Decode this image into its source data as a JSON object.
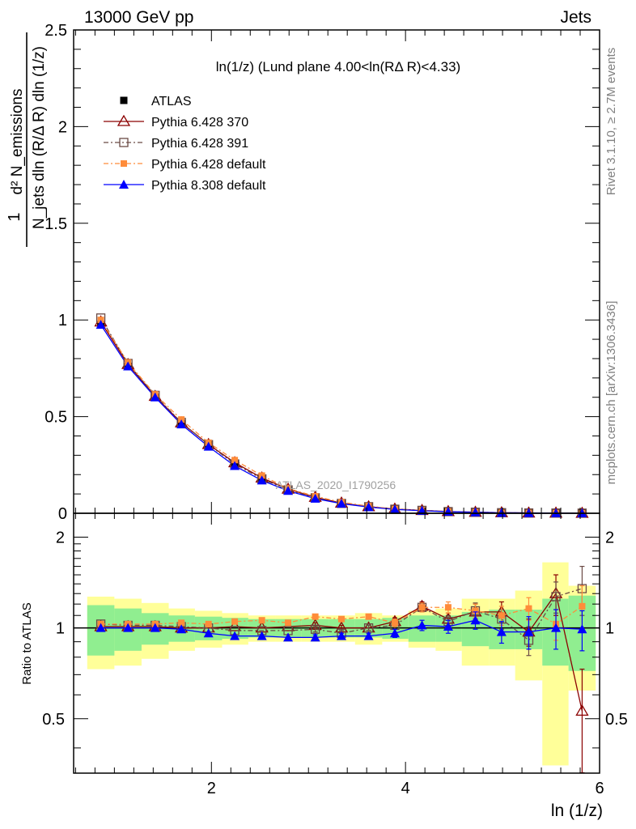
{
  "header": {
    "energy_label": "13000 GeV pp",
    "process_label": "Jets",
    "plot_title": "ln(1/z)  (Lund plane 4.00<ln(RΔ R)<4.33)",
    "analysis_watermark": "ATLAS_2020_I1790256",
    "rivet_label": "Rivet 3.1.10, ≥ 2.7M events",
    "mcplots_label": "mcplots.cern.ch [arXiv:1306.3436]"
  },
  "axes": {
    "main_ylabel_one": "1",
    "main_ylabel_num": "d² N_emissions",
    "main_ylabel_den": "N_jets dln (R/Δ R) dln (1/z)",
    "ratio_ylabel": "Ratio to ATLAS",
    "xlabel": "ln (1/z)",
    "x_ticks": [
      "2",
      "4",
      "6"
    ],
    "main_y_ticks": [
      "0",
      "0.5",
      "1",
      "1.5",
      "2",
      "2.5"
    ],
    "ratio_y_ticks_left": [
      "0.5",
      "1",
      "2"
    ],
    "ratio_y_ticks_right": [
      "0.5",
      "1",
      "2"
    ]
  },
  "legend": {
    "items": [
      {
        "key": "atlas",
        "label": "ATLAS"
      },
      {
        "key": "p370",
        "label": "Pythia 6.428 370"
      },
      {
        "key": "p391",
        "label": "Pythia 6.428 391"
      },
      {
        "key": "p6def",
        "label": "Pythia 6.428 default"
      },
      {
        "key": "p8def",
        "label": "Pythia 8.308 default"
      }
    ]
  },
  "colors": {
    "atlas": "#000000",
    "p370": "#8b0000",
    "p391": "#6b4a45",
    "p6def": "#ff8c3a",
    "p8def": "#0000ff",
    "band_inner": "#90ee90",
    "band_outer": "#ffff99"
  },
  "chart_data": {
    "type": "line",
    "x": [
      0.86,
      1.14,
      1.42,
      1.69,
      1.97,
      2.24,
      2.52,
      2.79,
      3.07,
      3.34,
      3.62,
      3.89,
      4.17,
      4.44,
      4.72,
      4.99,
      5.27,
      5.55,
      5.82
    ],
    "bin_edges": [
      0.72,
      1.0,
      1.28,
      1.56,
      1.83,
      2.11,
      2.38,
      2.66,
      2.93,
      3.21,
      3.48,
      3.76,
      4.03,
      4.31,
      4.58,
      4.86,
      5.13,
      5.41,
      5.68,
      5.96
    ],
    "xlim": [
      0.58,
      6.0
    ],
    "main_ylim": [
      0,
      2.5
    ],
    "ratio_ylim": [
      0.33,
      2.4
    ],
    "series": [
      {
        "key": "atlas",
        "name": "ATLAS",
        "values": [
          0.975,
          0.76,
          0.6,
          0.465,
          0.355,
          0.26,
          0.182,
          0.124,
          0.081,
          0.053,
          0.034,
          0.021,
          0.013,
          0.008,
          0.0048,
          0.0028,
          0.0016,
          0.0009,
          0.0005
        ]
      },
      {
        "key": "p370",
        "name": "Pythia 6.428 370",
        "values": [
          0.99,
          0.77,
          0.605,
          0.468,
          0.356,
          0.262,
          0.183,
          0.125,
          0.083,
          0.053,
          0.034,
          0.022,
          0.015,
          0.009,
          0.0055,
          0.003,
          0.0016,
          0.0012,
          0.0003
        ]
      },
      {
        "key": "p391",
        "name": "Pythia 6.428 391",
        "values": [
          1.01,
          0.775,
          0.61,
          0.47,
          0.355,
          0.255,
          0.178,
          0.121,
          0.08,
          0.051,
          0.034,
          0.021,
          0.015,
          0.0085,
          0.0055,
          0.003,
          0.0014,
          0.0011,
          0.0007
        ]
      },
      {
        "key": "p6def",
        "name": "Pythia 6.428 default",
        "values": [
          1.0,
          0.78,
          0.615,
          0.485,
          0.365,
          0.275,
          0.195,
          0.128,
          0.088,
          0.057,
          0.037,
          0.022,
          0.015,
          0.0092,
          0.0055,
          0.003,
          0.0018,
          0.0009,
          0.0006
        ]
      },
      {
        "key": "p8def",
        "name": "Pythia 8.308 default",
        "values": [
          0.975,
          0.76,
          0.6,
          0.46,
          0.345,
          0.245,
          0.17,
          0.116,
          0.076,
          0.05,
          0.032,
          0.02,
          0.013,
          0.0082,
          0.0052,
          0.0027,
          0.0018,
          0.0009,
          0.0005
        ]
      }
    ],
    "ratio": {
      "band_inner": [
        0.19,
        0.16,
        0.12,
        0.1,
        0.09,
        0.08,
        0.07,
        0.07,
        0.07,
        0.07,
        0.07,
        0.08,
        0.1,
        0.1,
        0.13,
        0.15,
        0.15,
        0.25,
        0.28
      ],
      "band_outer": [
        0.27,
        0.25,
        0.21,
        0.16,
        0.14,
        0.12,
        0.1,
        0.1,
        0.1,
        0.1,
        0.12,
        0.1,
        0.14,
        0.16,
        0.25,
        0.25,
        0.33,
        0.65,
        0.38
      ],
      "series": [
        {
          "key": "p370",
          "values": [
            1.01,
            1.01,
            1.01,
            1.0,
            1.0,
            1.01,
            1.0,
            1.01,
            1.02,
            1.0,
            1.0,
            1.05,
            1.18,
            1.07,
            1.13,
            1.13,
            0.97,
            1.3,
            0.53
          ],
          "err": [
            0.01,
            0.01,
            0.01,
            0.01,
            0.01,
            0.01,
            0.01,
            0.01,
            0.02,
            0.02,
            0.02,
            0.03,
            0.04,
            0.05,
            0.07,
            0.09,
            0.1,
            0.2,
            0.2
          ]
        },
        {
          "key": "p391",
          "values": [
            1.03,
            1.02,
            1.02,
            1.01,
            1.0,
            0.98,
            0.98,
            0.98,
            0.99,
            0.96,
            1.0,
            1.02,
            1.17,
            1.05,
            1.14,
            1.07,
            0.91,
            1.27,
            1.35
          ],
          "err": [
            0.01,
            0.01,
            0.01,
            0.01,
            0.01,
            0.01,
            0.01,
            0.01,
            0.02,
            0.02,
            0.02,
            0.03,
            0.04,
            0.05,
            0.07,
            0.08,
            0.1,
            0.15,
            0.25
          ]
        },
        {
          "key": "p6def",
          "values": [
            1.03,
            1.03,
            1.03,
            1.04,
            1.03,
            1.05,
            1.06,
            1.04,
            1.09,
            1.07,
            1.09,
            1.04,
            1.17,
            1.17,
            1.14,
            1.1,
            1.16,
            1.03,
            1.18
          ],
          "err": [
            0.01,
            0.01,
            0.01,
            0.01,
            0.01,
            0.01,
            0.01,
            0.01,
            0.02,
            0.02,
            0.02,
            0.03,
            0.04,
            0.05,
            0.06,
            0.08,
            0.1,
            0.12,
            0.2
          ]
        },
        {
          "key": "p8def",
          "values": [
            1.0,
            1.0,
            1.0,
            0.99,
            0.96,
            0.94,
            0.94,
            0.93,
            0.93,
            0.94,
            0.94,
            0.96,
            1.02,
            1.01,
            1.06,
            0.97,
            0.97,
            1.0,
            0.99
          ],
          "err": [
            0.01,
            0.01,
            0.01,
            0.01,
            0.01,
            0.01,
            0.01,
            0.01,
            0.02,
            0.02,
            0.02,
            0.03,
            0.04,
            0.05,
            0.07,
            0.08,
            0.12,
            0.15,
            0.15
          ]
        }
      ]
    }
  }
}
